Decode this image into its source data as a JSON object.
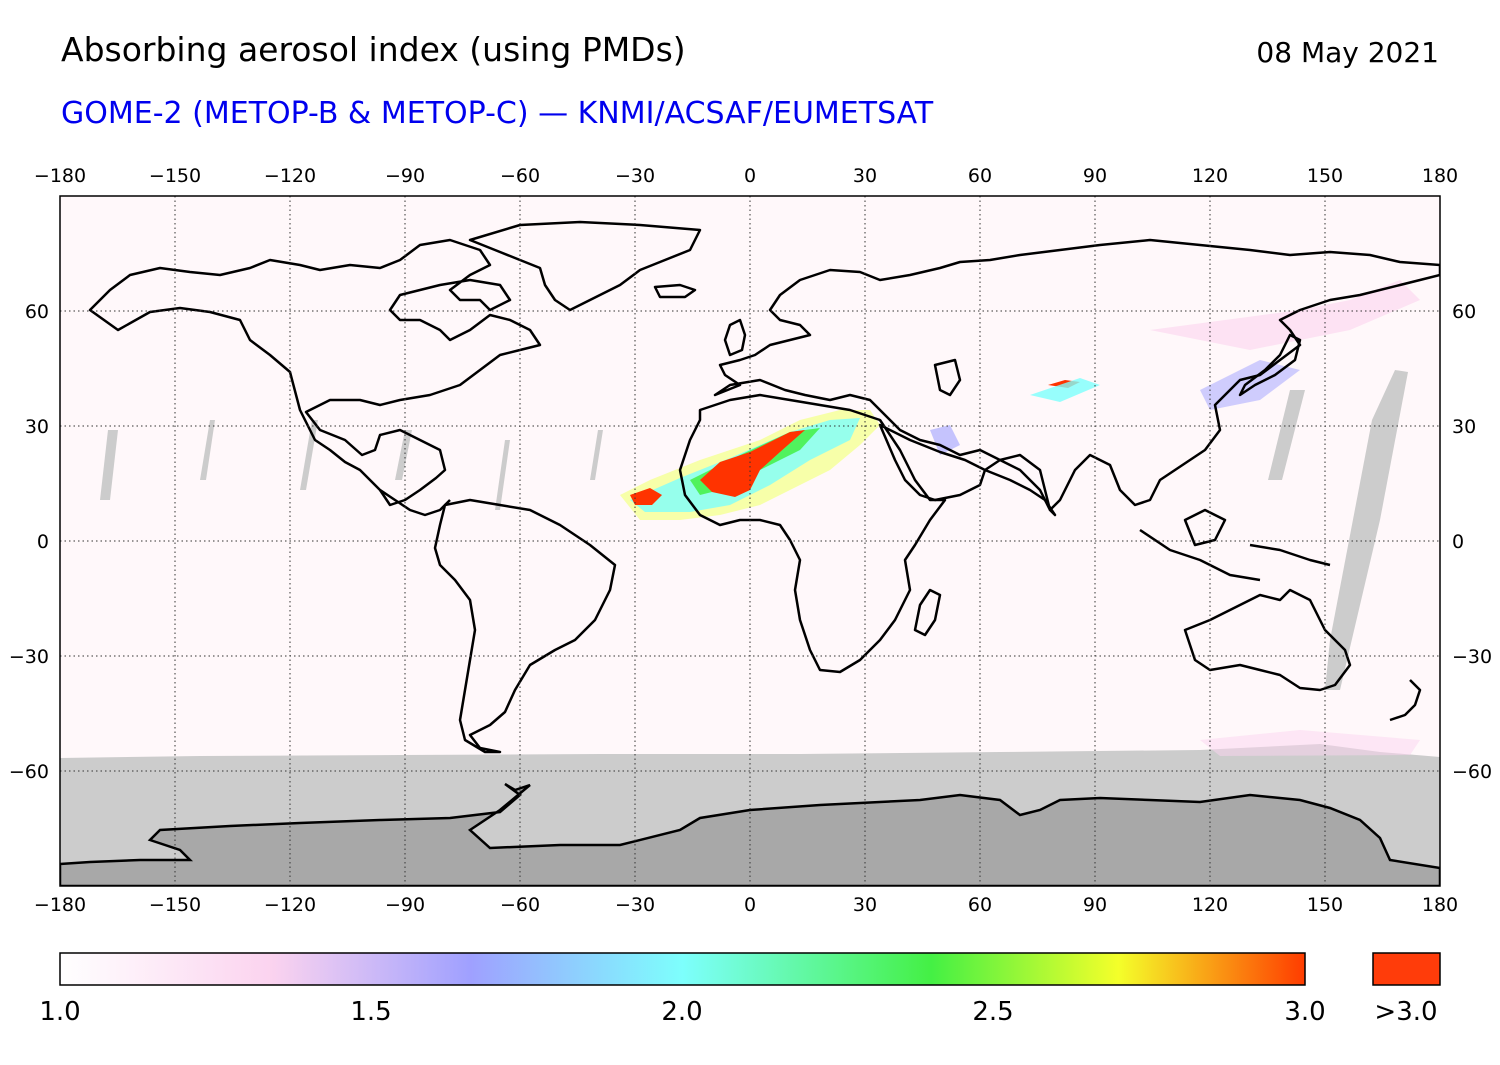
{
  "header": {
    "title": "Absorbing aerosol index (using PMDs)",
    "date": "08 May 2021",
    "subtitle": "GOME-2 (METOP-B & METOP-C) — KNMI/ACSAF/EUMETSAT",
    "subtitle_color": "#0000ee"
  },
  "map": {
    "projection": "equirectangular",
    "lon_ticks": [
      "−180",
      "−150",
      "−120",
      "−90",
      "−60",
      "−30",
      "0",
      "30",
      "60",
      "90",
      "120",
      "150",
      "180"
    ],
    "lat_ticks": [
      "60",
      "30",
      "0",
      "−30",
      "−60"
    ],
    "lon_range": [
      -180,
      180
    ],
    "lat_range": [
      -90,
      90
    ],
    "no_data_color": "#cccccc",
    "land_ice_color": "#a8a8a8",
    "background_color": "#fff8fa",
    "hotspot_color": "#ff3300"
  },
  "colorbar": {
    "labels": [
      "1.0",
      "1.5",
      "2.0",
      "2.5",
      "3.0"
    ],
    "over_label": ">3.0",
    "over_color": "#ff3c0a",
    "stops": [
      "#ffffff",
      "#fbd3ef",
      "#9fa0ff",
      "#7dfffd",
      "#44f044",
      "#f4ff2a",
      "#ff3c00"
    ]
  }
}
